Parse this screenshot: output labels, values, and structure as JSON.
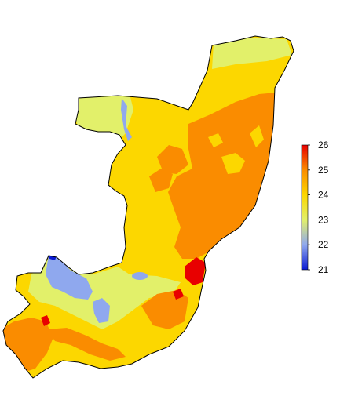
{
  "legend": {
    "ticks": [
      {
        "value": 26,
        "label": "26"
      },
      {
        "value": 25,
        "label": "25"
      },
      {
        "value": 24,
        "label": "24"
      },
      {
        "value": 23,
        "label": "23"
      },
      {
        "value": 22,
        "label": "22"
      },
      {
        "value": 21,
        "label": "21"
      }
    ],
    "range": [
      21,
      26
    ],
    "colors": {
      "v21": "#0a1ad2",
      "v22": "#8fa8ee",
      "v23": "#e2f06a",
      "v24": "#fcd700",
      "v25": "#fa8c00",
      "v26": "#e80000"
    }
  },
  "map_colors": {
    "warm_orange": "#fa8c00",
    "gold": "#fcd700",
    "lime": "#e2f06a",
    "periwinkle": "#8fa8ee",
    "red": "#e80000",
    "outline": "#000000"
  }
}
